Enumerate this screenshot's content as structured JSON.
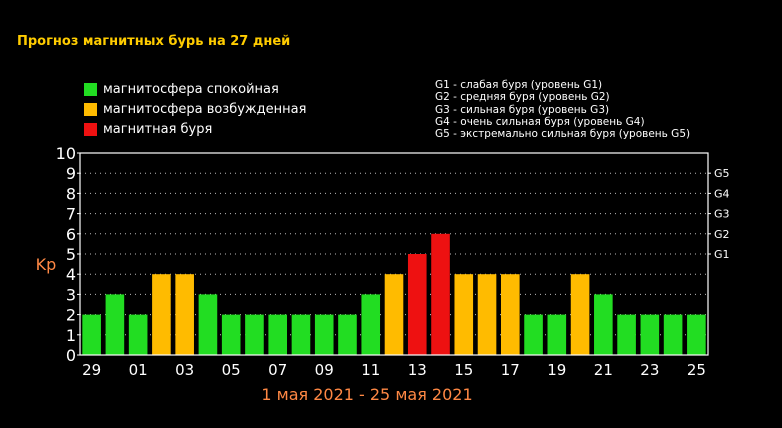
{
  "title": "Прогноз магнитных бурь на 27 дней",
  "legend": [
    {
      "label": "магнитосфера спокойная",
      "color": "#22dd22"
    },
    {
      "label": "магнитосфера возбужденная",
      "color": "#ffbb00"
    },
    {
      "label": "магнитная буря",
      "color": "#ee1111"
    }
  ],
  "g_levels": [
    "G1 - слабая буря (уровень G1)",
    "G2 - средняя буря (уровень G2)",
    "G3 - сильная буря (уровень G3)",
    "G4 - очень сильная буря (уровень G4)",
    "G5 - экстремально сильная буря (уровень G5)"
  ],
  "chart_data": {
    "type": "bar",
    "ylabel": "Kp",
    "xlabel": "1 мая 2021 - 25 мая 2021",
    "ylim": [
      0,
      10
    ],
    "yticks": [
      "0",
      "1",
      "2",
      "3",
      "4",
      "5",
      "6",
      "7",
      "8",
      "9",
      "10"
    ],
    "right_axis": [
      {
        "label": "G1",
        "kp": 5
      },
      {
        "label": "G2",
        "kp": 6
      },
      {
        "label": "G3",
        "kp": 7
      },
      {
        "label": "G4",
        "kp": 8
      },
      {
        "label": "G5",
        "kp": 9
      }
    ],
    "x_tick_labels": [
      "29",
      "01",
      "03",
      "05",
      "07",
      "09",
      "11",
      "13",
      "15",
      "17",
      "19",
      "21",
      "23",
      "25"
    ],
    "values": [
      2,
      3,
      2,
      4,
      4,
      3,
      2,
      2,
      2,
      2,
      2,
      2,
      3,
      4,
      5,
      6,
      4,
      4,
      4,
      2,
      2,
      4,
      3,
      2,
      2,
      2,
      2
    ],
    "levels": [
      "q",
      "q",
      "q",
      "a",
      "a",
      "q",
      "q",
      "q",
      "q",
      "q",
      "q",
      "q",
      "q",
      "a",
      "s",
      "s",
      "a",
      "a",
      "a",
      "q",
      "q",
      "a",
      "q",
      "q",
      "q",
      "q",
      "q"
    ],
    "grid": true
  }
}
